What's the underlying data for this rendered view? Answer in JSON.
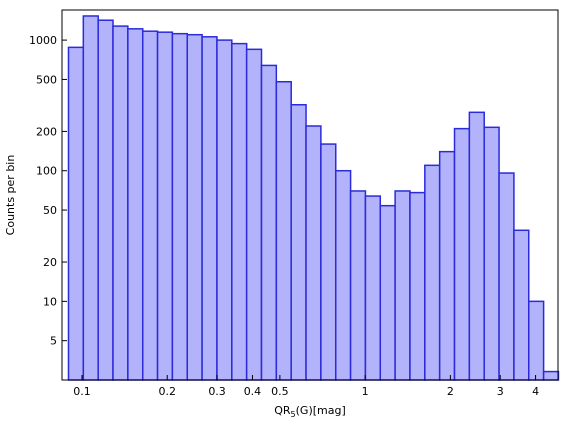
{
  "chart_data": {
    "type": "bar",
    "title": "",
    "xlabel_parts": {
      "main": "QR",
      "sub": "5",
      "rest": "(G)[mag]"
    },
    "ylabel": "Counts per bin",
    "x_scale": "log",
    "y_scale": "log",
    "xlim": [
      0.085,
      4.8
    ],
    "ylim": [
      2.5,
      1700
    ],
    "x_ticks": [
      {
        "value": 0.1,
        "label": "0.1"
      },
      {
        "value": 0.2,
        "label": "0.2"
      },
      {
        "value": 0.3,
        "label": "0.3"
      },
      {
        "value": 0.4,
        "label": "0.4"
      },
      {
        "value": 0.5,
        "label": "0.5"
      },
      {
        "value": 1,
        "label": "1"
      },
      {
        "value": 2,
        "label": "2"
      },
      {
        "value": 3,
        "label": "3"
      },
      {
        "value": 4,
        "label": "4"
      }
    ],
    "y_ticks": [
      {
        "value": 5,
        "label": "5"
      },
      {
        "value": 10,
        "label": "10"
      },
      {
        "value": 20,
        "label": "20"
      },
      {
        "value": 50,
        "label": "50"
      },
      {
        "value": 100,
        "label": "100"
      },
      {
        "value": 200,
        "label": "200"
      },
      {
        "value": 500,
        "label": "500"
      },
      {
        "value": 1000,
        "label": "1000"
      }
    ],
    "bin_edges": [
      0.0896,
      0.1011,
      0.1141,
      0.1287,
      0.1452,
      0.1639,
      0.1849,
      0.2086,
      0.2354,
      0.2656,
      0.2997,
      0.3382,
      0.3816,
      0.4306,
      0.4858,
      0.5482,
      0.6185,
      0.6979,
      0.7875,
      0.8885,
      1.0026,
      1.1312,
      1.2764,
      1.4402,
      1.6251,
      1.8336,
      2.069,
      2.3346,
      2.6342,
      2.9723,
      3.3538,
      3.7843,
      4.2699,
      4.818
    ],
    "values": [
      880,
      1530,
      1420,
      1280,
      1220,
      1170,
      1150,
      1120,
      1100,
      1060,
      1000,
      940,
      850,
      640,
      480,
      320,
      220,
      160,
      100,
      70,
      64,
      54,
      70,
      68,
      110,
      140,
      210,
      280,
      215,
      96,
      35,
      10,
      2.9
    ],
    "bar_fill": "#b3b3fb",
    "bar_stroke": "#2b2bd9",
    "grid": false
  }
}
